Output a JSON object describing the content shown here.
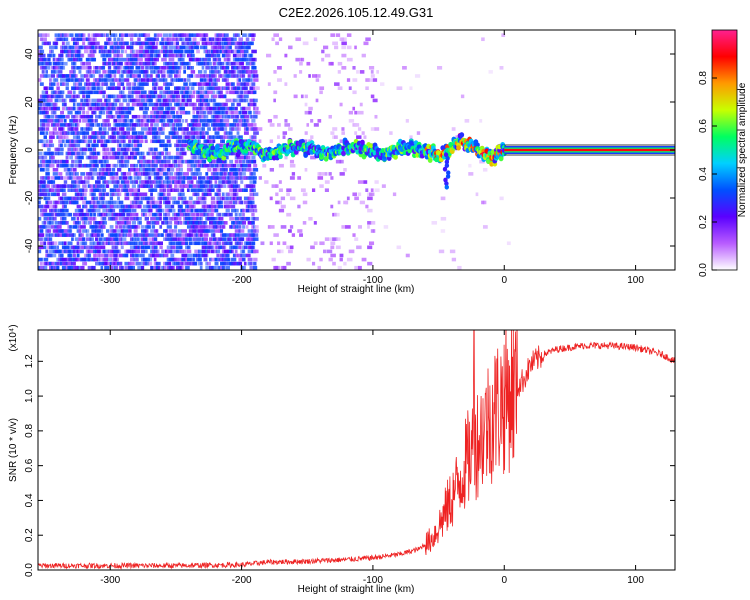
{
  "title": "C2E2.2026.105.12.49.G31",
  "chart_data": [
    {
      "type": "heatmap",
      "name": "spectrogram",
      "xlabel": "Height of straight line (km)",
      "ylabel": "Frequency (Hz)",
      "xlim": [
        -355,
        130
      ],
      "ylim": [
        -50,
        50
      ],
      "xticks": [
        {
          "value": -300,
          "label": "-300"
        },
        {
          "value": -200,
          "label": "-200"
        },
        {
          "value": -100,
          "label": "-100"
        },
        {
          "value": 0,
          "label": "0"
        },
        {
          "value": 100,
          "label": "100"
        }
      ],
      "yticks": [
        {
          "value": -40,
          "label": "-40"
        },
        {
          "value": -20,
          "label": "-20"
        },
        {
          "value": 0,
          "label": "0"
        },
        {
          "value": 20,
          "label": "20"
        },
        {
          "value": 40,
          "label": "40"
        }
      ],
      "carrier": {
        "x_start": -240,
        "x_end": 130,
        "frequency": 0,
        "solid_from": 0
      },
      "noise_region": {
        "x_start": -355,
        "x_end": -190,
        "band_edge": -100
      },
      "colorbar": {
        "label": "Normalized spectral amplitude",
        "range": [
          0,
          1
        ],
        "ticks": [
          {
            "value": 0.0,
            "label": "0.0"
          },
          {
            "value": 0.2,
            "label": "0.2"
          },
          {
            "value": 0.4,
            "label": "0.4"
          },
          {
            "value": 0.6,
            "label": "0.6"
          },
          {
            "value": 0.8,
            "label": "0.8"
          }
        ],
        "stops": [
          "#ffffff",
          "#b85cff",
          "#5a00ff",
          "#0050ff",
          "#00d0ff",
          "#00ff60",
          "#c8ff00",
          "#ff9a00",
          "#ff0000",
          "#ff2090"
        ]
      }
    },
    {
      "type": "line",
      "name": "snr",
      "xlabel": "Height of straight line (km)",
      "ylabel": "SNR (10 * v/v)",
      "scale_label": "(x10⁴)",
      "xlim": [
        -355,
        130
      ],
      "ylim": [
        0,
        1.38
      ],
      "color": "#ee2222",
      "xticks": [
        {
          "value": -300,
          "label": "-300"
        },
        {
          "value": -200,
          "label": "-200"
        },
        {
          "value": -100,
          "label": "-100"
        },
        {
          "value": 0,
          "label": "0"
        },
        {
          "value": 100,
          "label": "100"
        }
      ],
      "yticks": [
        {
          "value": 0.0,
          "label": "0.0"
        },
        {
          "value": 0.2,
          "label": "0.2"
        },
        {
          "value": 0.4,
          "label": "0.4"
        },
        {
          "value": 0.6,
          "label": "0.6"
        },
        {
          "value": 0.8,
          "label": "0.8"
        },
        {
          "value": 1.0,
          "label": "1.0"
        },
        {
          "value": 1.2,
          "label": "1.2"
        }
      ],
      "trend": [
        [
          -355,
          0.025
        ],
        [
          -250,
          0.025
        ],
        [
          -200,
          0.03
        ],
        [
          -180,
          0.045
        ],
        [
          -150,
          0.05
        ],
        [
          -120,
          0.06
        ],
        [
          -100,
          0.07
        ],
        [
          -80,
          0.09
        ],
        [
          -65,
          0.12
        ],
        [
          -55,
          0.18
        ],
        [
          -48,
          0.28
        ],
        [
          -42,
          0.38
        ],
        [
          -36,
          0.48
        ],
        [
          -30,
          0.6
        ],
        [
          -25,
          0.68
        ],
        [
          -20,
          0.75
        ],
        [
          -15,
          0.82
        ],
        [
          -10,
          0.88
        ],
        [
          -5,
          0.94
        ],
        [
          0,
          0.98
        ],
        [
          5,
          1.02
        ],
        [
          10,
          1.05
        ],
        [
          15,
          1.1
        ],
        [
          20,
          1.18
        ],
        [
          30,
          1.24
        ],
        [
          40,
          1.27
        ],
        [
          60,
          1.29
        ],
        [
          80,
          1.29
        ],
        [
          100,
          1.28
        ],
        [
          120,
          1.24
        ],
        [
          130,
          1.2
        ]
      ],
      "peak": {
        "x": -23,
        "y": 1.38
      }
    }
  ]
}
